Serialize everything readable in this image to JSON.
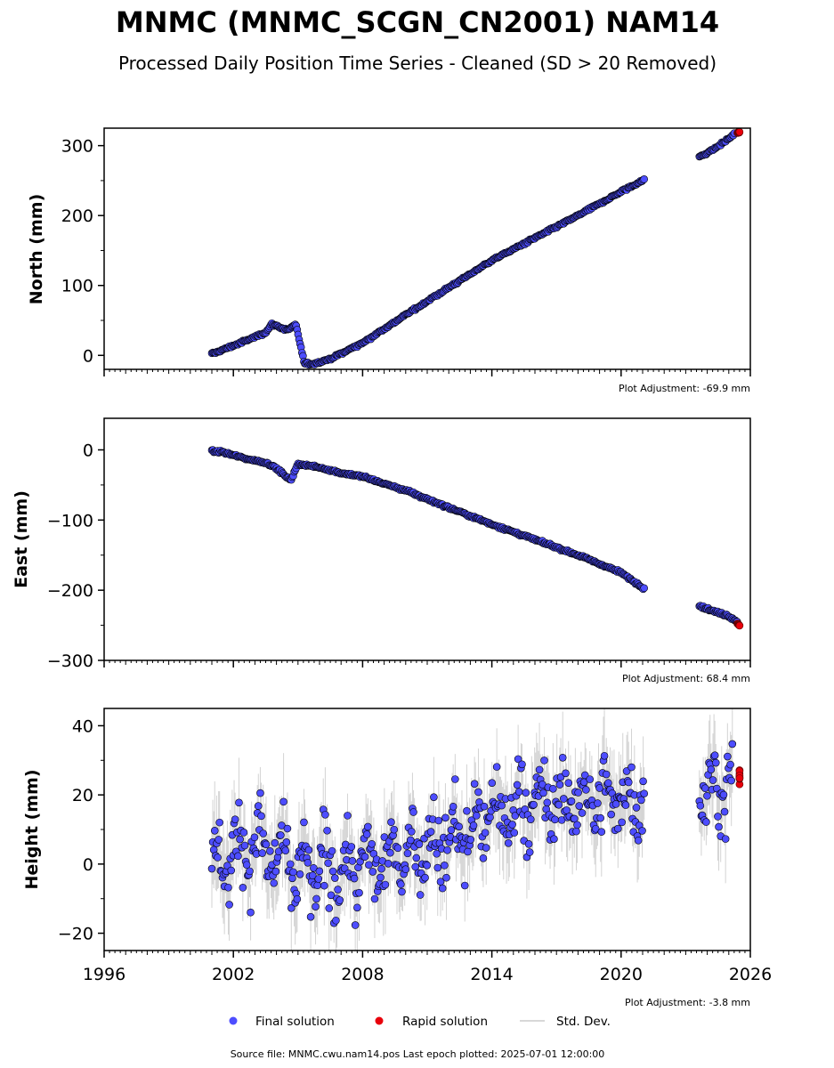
{
  "title": "MNMC (MNMC_SCGN_CN2001) NAM14",
  "subtitle": "Processed Daily Position Time Series - Cleaned (SD > 20 Removed)",
  "footer": "Source file: MNMC.cwu.nam14.pos  Last epoch plotted: 2025-07-01 12:00:00",
  "legend": {
    "final_label": "Final solution",
    "rapid_label": "Rapid solution",
    "std_label": "Std. Dev."
  },
  "colors": {
    "final": "#4d4dff",
    "final_edge": "#000000",
    "rapid": "#e8000b",
    "std": "#808080"
  },
  "panels": [
    {
      "ylabel": "North (mm)",
      "adjustment": "Plot Adjustment: -69.9 mm"
    },
    {
      "ylabel": "East (mm)",
      "adjustment": "Plot Adjustment: 68.4 mm"
    },
    {
      "ylabel": "Height (mm)",
      "adjustment": "Plot Adjustment: -3.8 mm"
    }
  ],
  "chart_data": [
    {
      "type": "scatter",
      "ylabel": "North (mm)",
      "xlim": [
        1996,
        2026
      ],
      "ylim": [
        -20,
        325
      ],
      "yticks": [
        0,
        100,
        200,
        300
      ],
      "xticks": [
        1996,
        2002,
        2008,
        2014,
        2020,
        2026
      ],
      "x_tick_labels_shown": false,
      "series": [
        {
          "name": "Final solution",
          "x": [
            2001.0,
            2001.5,
            2002.5,
            2003.5,
            2003.8,
            2004.5,
            2004.9,
            2005.3,
            2005.7,
            2006.5,
            2008.0,
            2010.0,
            2012.0,
            2014.0,
            2016.0,
            2018.0,
            2020.0,
            2021.0,
            2023.7,
            2024.3,
            2025.0,
            2025.3
          ],
          "y": [
            2,
            8,
            20,
            33,
            45,
            36,
            44,
            -12,
            -12,
            -5,
            18,
            58,
            97,
            136,
            168,
            200,
            234,
            250,
            285,
            295,
            310,
            318
          ]
        },
        {
          "name": "Rapid solution",
          "x": [
            2025.4,
            2025.5
          ],
          "y": [
            318,
            320
          ]
        }
      ]
    },
    {
      "type": "scatter",
      "ylabel": "East (mm)",
      "xlim": [
        1996,
        2026
      ],
      "ylim": [
        -300,
        45
      ],
      "yticks": [
        -300,
        -200,
        -100,
        0
      ],
      "xticks": [
        1996,
        2002,
        2008,
        2014,
        2020,
        2026
      ],
      "x_tick_labels_shown": false,
      "series": [
        {
          "name": "Final solution",
          "x": [
            2001.0,
            2001.5,
            2002.5,
            2003.5,
            2004.0,
            2004.5,
            2004.7,
            2005.0,
            2006.0,
            2007.0,
            2008.0,
            2009.0,
            2010.0,
            2012.0,
            2014.0,
            2016.0,
            2018.0,
            2020.0,
            2021.0,
            2023.7,
            2024.3,
            2025.0,
            2025.4
          ],
          "y": [
            -2,
            -3,
            -12,
            -18,
            -26,
            -40,
            -42,
            -20,
            -25,
            -33,
            -38,
            -48,
            -58,
            -82,
            -106,
            -128,
            -150,
            -175,
            -196,
            -223,
            -230,
            -237,
            -245
          ]
        },
        {
          "name": "Rapid solution",
          "x": [
            2025.4,
            2025.5
          ],
          "y": [
            -247,
            -250
          ]
        }
      ]
    },
    {
      "type": "scatter",
      "ylabel": "Height (mm)",
      "xlim": [
        1996,
        2026
      ],
      "ylim": [
        -25,
        45
      ],
      "yticks": [
        -20,
        0,
        20,
        40
      ],
      "xticks": [
        1996,
        2002,
        2008,
        2014,
        2020,
        2026
      ],
      "x_tick_labels": [
        "1996",
        "2002",
        "2008",
        "2014",
        "2020",
        "2026"
      ],
      "series": [
        {
          "name": "Final solution",
          "x": [
            2001.0,
            2002.0,
            2003.0,
            2004.0,
            2005.0,
            2006.0,
            2007.0,
            2008.0,
            2009.0,
            2010.0,
            2011.0,
            2012.0,
            2013.0,
            2014.0,
            2015.0,
            2016.0,
            2017.0,
            2018.0,
            2019.0,
            2020.0,
            2021.0,
            2023.7,
            2024.5,
            2025.2
          ],
          "y": [
            -2,
            4,
            5,
            3,
            -3,
            -2,
            -2,
            -1,
            1,
            4,
            5,
            7,
            10,
            14,
            16,
            18,
            18,
            18,
            19,
            19,
            21,
            22,
            22,
            25
          ]
        },
        {
          "name": "Rapid solution",
          "x": [
            2025.5
          ],
          "y": [
            25
          ]
        }
      ]
    }
  ]
}
